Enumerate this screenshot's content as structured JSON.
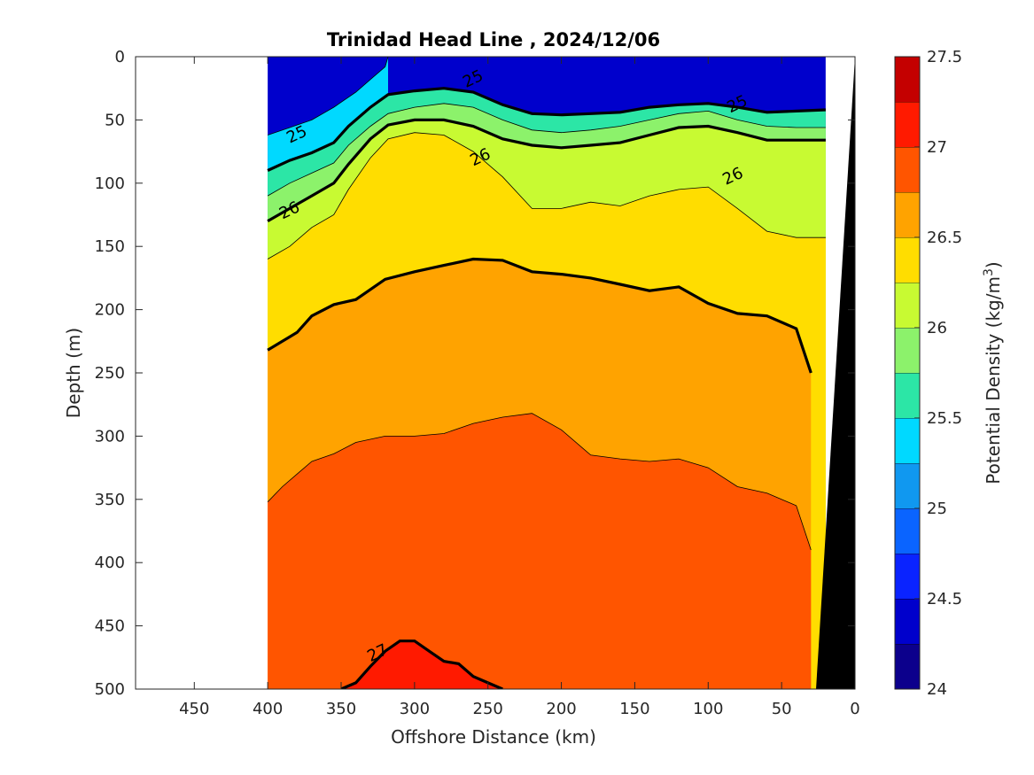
{
  "chart_data": {
    "type": "heatmap",
    "subtype": "filled-contour-section",
    "title": "Trinidad Head Line , 2024/12/06",
    "xlabel": "Offshore Distance (km)",
    "ylabel": "Depth (m)",
    "xlim": [
      490,
      0
    ],
    "ylim": [
      500,
      0
    ],
    "x_reversed": true,
    "y_reversed": true,
    "xticks": [
      450,
      400,
      350,
      300,
      250,
      200,
      150,
      100,
      50,
      0
    ],
    "yticks": [
      0,
      50,
      100,
      150,
      200,
      250,
      300,
      350,
      400,
      450,
      500
    ],
    "data_x_range": [
      400,
      20
    ],
    "colorbar": {
      "label": "Potential Density (kg/m",
      "label_superscript": "3",
      "label_suffix": ")",
      "levels": [
        24,
        24.25,
        24.5,
        24.75,
        25,
        25.25,
        25.5,
        25.75,
        26,
        26.25,
        26.5,
        26.75,
        27,
        27.25,
        27.5
      ],
      "ticks": [
        "24",
        "24.5",
        "25",
        "25.5",
        "26",
        "26.5",
        "27",
        "27.5"
      ],
      "tick_values": [
        24,
        24.5,
        25,
        25.5,
        26,
        26.5,
        27,
        27.5
      ],
      "colors": [
        "#0c008c",
        "#0000cc",
        "#0a23ff",
        "#0a64ff",
        "#1098f0",
        "#00d9ff",
        "#2ce6a6",
        "#8cf26b",
        "#c8fa32",
        "#ffdd00",
        "#ffa300",
        "#ff5500",
        "#ff1a00",
        "#c40000"
      ]
    },
    "isopycnals": [
      {
        "level": 25.25,
        "x": [
          400,
          385,
          370,
          355,
          340,
          330,
          320,
          318
        ],
        "depth": [
          62,
          56,
          50,
          40,
          28,
          18,
          8,
          0
        ]
      },
      {
        "level": 25.5,
        "x": [
          400,
          385,
          370,
          355,
          345,
          330,
          318,
          300,
          280,
          260,
          240,
          220,
          200,
          180,
          160,
          140,
          120,
          100,
          80,
          60,
          40,
          20
        ],
        "depth": [
          90,
          82,
          76,
          68,
          55,
          40,
          30,
          27,
          25,
          28,
          38,
          45,
          46,
          45,
          44,
          40,
          38,
          37,
          40,
          44,
          43,
          42
        ]
      },
      {
        "level": 25.75,
        "x": [
          400,
          385,
          370,
          355,
          345,
          330,
          318,
          300,
          280,
          260,
          240,
          220,
          200,
          180,
          160,
          140,
          120,
          100,
          80,
          60,
          40,
          20
        ],
        "depth": [
          110,
          100,
          92,
          84,
          70,
          55,
          45,
          40,
          37,
          40,
          50,
          58,
          60,
          58,
          55,
          50,
          45,
          43,
          50,
          55,
          56,
          56
        ]
      },
      {
        "level": 26.0,
        "x": [
          400,
          385,
          370,
          355,
          345,
          330,
          318,
          300,
          280,
          260,
          240,
          220,
          200,
          180,
          160,
          140,
          120,
          100,
          80,
          60,
          40,
          20
        ],
        "depth": [
          130,
          120,
          110,
          100,
          85,
          65,
          54,
          50,
          50,
          55,
          65,
          70,
          72,
          70,
          68,
          62,
          56,
          55,
          60,
          66,
          66,
          66
        ]
      },
      {
        "level": 26.25,
        "x": [
          400,
          385,
          370,
          355,
          345,
          330,
          318,
          300,
          280,
          260,
          240,
          220,
          200,
          180,
          160,
          140,
          120,
          100,
          80,
          60,
          40,
          20
        ],
        "depth": [
          160,
          150,
          135,
          125,
          105,
          80,
          65,
          60,
          62,
          75,
          95,
          120,
          120,
          115,
          118,
          110,
          105,
          103,
          120,
          138,
          143,
          143
        ]
      },
      {
        "level": 26.5,
        "x": [
          400,
          390,
          380,
          370,
          355,
          340,
          320,
          300,
          280,
          260,
          240,
          220,
          200,
          180,
          160,
          140,
          120,
          100,
          80,
          60,
          40,
          30
        ],
        "depth": [
          232,
          225,
          218,
          205,
          196,
          192,
          176,
          170,
          165,
          160,
          161,
          170,
          172,
          175,
          180,
          185,
          182,
          195,
          203,
          205,
          215,
          250
        ]
      },
      {
        "level": 26.75,
        "x": [
          400,
          390,
          380,
          370,
          355,
          340,
          320,
          300,
          280,
          260,
          240,
          220,
          200,
          180,
          160,
          140,
          120,
          100,
          80,
          60,
          40,
          30
        ],
        "depth": [
          352,
          340,
          330,
          320,
          314,
          305,
          300,
          300,
          298,
          290,
          285,
          282,
          295,
          315,
          318,
          320,
          318,
          325,
          340,
          345,
          355,
          390
        ]
      },
      {
        "level": 27.0,
        "x": [
          350,
          340,
          330,
          320,
          310,
          300,
          290,
          280,
          270,
          260,
          250,
          240
        ],
        "depth": [
          500,
          495,
          482,
          470,
          462,
          462,
          470,
          478,
          480,
          490,
          495,
          500
        ]
      }
    ],
    "contour_labels": [
      {
        "text": "25",
        "x": 260,
        "depth": 18
      },
      {
        "text": "25",
        "x": 80,
        "depth": 38
      },
      {
        "text": "25",
        "x": 380,
        "depth": 62
      },
      {
        "text": "26",
        "x": 255,
        "depth": 80
      },
      {
        "text": "26",
        "x": 83,
        "depth": 95
      },
      {
        "text": "26",
        "x": 385,
        "depth": 122
      },
      {
        "text": "27",
        "x": 325,
        "depth": 472
      }
    ]
  }
}
